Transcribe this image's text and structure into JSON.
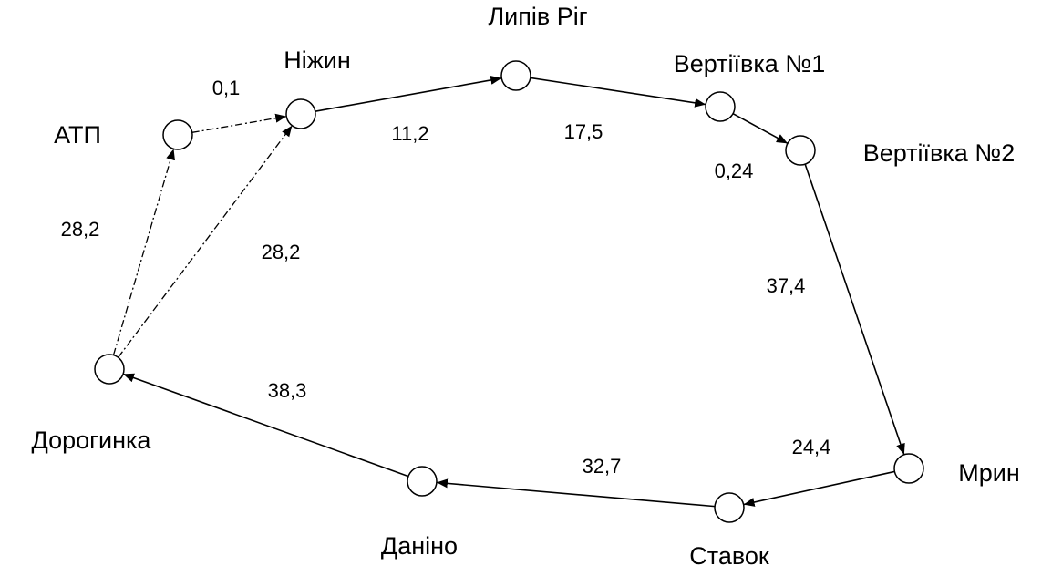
{
  "nodes": [
    {
      "label": "АТП"
    },
    {
      "label": "Ніжин"
    },
    {
      "label": "Липів Ріг"
    },
    {
      "label": "Вертіївка №1"
    },
    {
      "label": "Вертіївка №2"
    },
    {
      "label": "Мрин"
    },
    {
      "label": "Ставок"
    },
    {
      "label": "Даніно"
    },
    {
      "label": "Дорогинка"
    }
  ],
  "edges": [
    {
      "label": "0,1"
    },
    {
      "label": "28,2"
    },
    {
      "label": "28,2"
    },
    {
      "label": "11,2"
    },
    {
      "label": "17,5"
    },
    {
      "label": "0,24"
    },
    {
      "label": "37,4"
    },
    {
      "label": "24,4"
    },
    {
      "label": "32,7"
    },
    {
      "label": "38,3"
    }
  ]
}
